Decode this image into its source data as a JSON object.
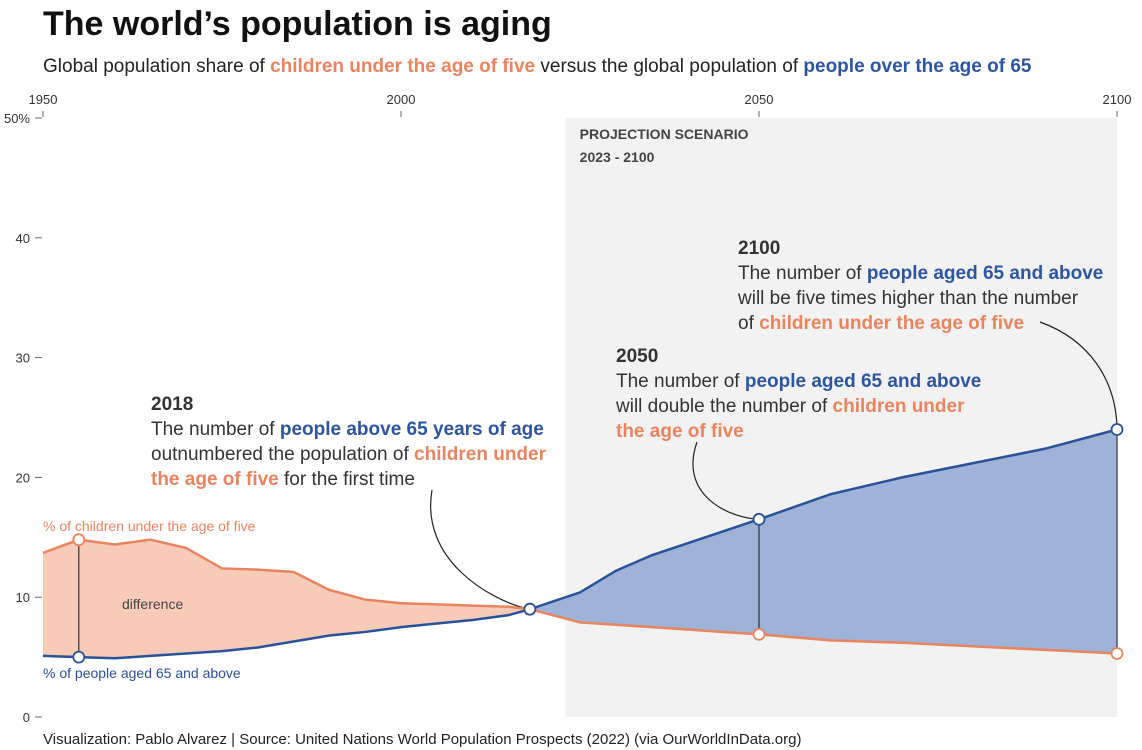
{
  "chart_data": {
    "type": "area-difference",
    "title": "The world’s population is aging",
    "subtitle": [
      {
        "text": "Global population share of "
      },
      {
        "text": "children under the age of five",
        "color": "#e8845f"
      },
      {
        "text": " versus the global population of "
      },
      {
        "text": "people over the age of 65",
        "color": "#2d55a0"
      }
    ],
    "x": [
      1950,
      1955,
      1960,
      1965,
      1970,
      1975,
      1980,
      1985,
      1990,
      1995,
      2000,
      2005,
      2010,
      2015,
      2018,
      2025,
      2030,
      2035,
      2040,
      2045,
      2050,
      2060,
      2070,
      2080,
      2090,
      2100
    ],
    "series": [
      {
        "name": "% of children under the age of five",
        "color": "#e8845f",
        "fill": "#f7cbb8",
        "values": [
          13.7,
          14.8,
          14.4,
          14.8,
          14.1,
          12.4,
          12.3,
          12.1,
          10.6,
          9.8,
          9.5,
          9.4,
          9.3,
          9.2,
          9.0,
          7.9,
          7.7,
          7.5,
          7.3,
          7.1,
          6.9,
          6.4,
          6.2,
          5.9,
          5.6,
          5.3
        ]
      },
      {
        "name": "% of people aged 65 and above",
        "color": "#2a5298",
        "fill": "#9fb2d8",
        "values": [
          5.1,
          5.0,
          4.9,
          5.1,
          5.3,
          5.5,
          5.8,
          6.3,
          6.8,
          7.1,
          7.5,
          7.8,
          8.1,
          8.5,
          9.0,
          10.4,
          12.2,
          13.5,
          14.5,
          15.5,
          16.5,
          18.6,
          20.0,
          21.2,
          22.4,
          24.0
        ]
      }
    ],
    "xlim": [
      1950,
      2100
    ],
    "xticks": [
      1950,
      2000,
      2050,
      2100
    ],
    "ylim": [
      0,
      50
    ],
    "yticks": [
      0,
      10,
      20,
      30,
      40,
      {
        "value": 50,
        "label": "50%"
      }
    ],
    "marker_years": [
      1955,
      2018,
      2050,
      2100
    ],
    "difference_label": "difference",
    "projection": {
      "label": "PROJECTION SCENARIO",
      "range_label": "2023 - 2100",
      "start": 2023,
      "end": 2100
    },
    "annotations": [
      {
        "year": "2018",
        "lines": [
          [
            {
              "text": "The number of "
            },
            {
              "text": "people above 65 years of age",
              "color": "#2d55a0"
            }
          ],
          [
            {
              "text": "outnumbered the population of "
            },
            {
              "text": "children under",
              "color": "#e8845f"
            }
          ],
          [
            {
              "text": "the age of five",
              "color": "#e8845f"
            },
            {
              "text": " for the first time"
            }
          ]
        ]
      },
      {
        "year": "2050",
        "lines": [
          [
            {
              "text": "The number of "
            },
            {
              "text": "people aged 65 and above",
              "color": "#2d55a0"
            }
          ],
          [
            {
              "text": "will double the number of  "
            },
            {
              "text": "children under",
              "color": "#e8845f"
            }
          ],
          [
            {
              "text": "the age of five",
              "color": "#e8845f"
            }
          ]
        ]
      },
      {
        "year": "2100",
        "lines": [
          [
            {
              "text": "The number of "
            },
            {
              "text": "people aged 65 and above",
              "color": "#2d55a0"
            }
          ],
          [
            {
              "text": "will be five times higher than the number"
            }
          ],
          [
            {
              "text": "of "
            },
            {
              "text": "children under the age of five",
              "color": "#e8845f"
            }
          ]
        ]
      }
    ],
    "source": "Visualization: Pablo Alvarez | Source: United Nations World Population Prospects (2022) (via OurWorldInData.org)"
  }
}
